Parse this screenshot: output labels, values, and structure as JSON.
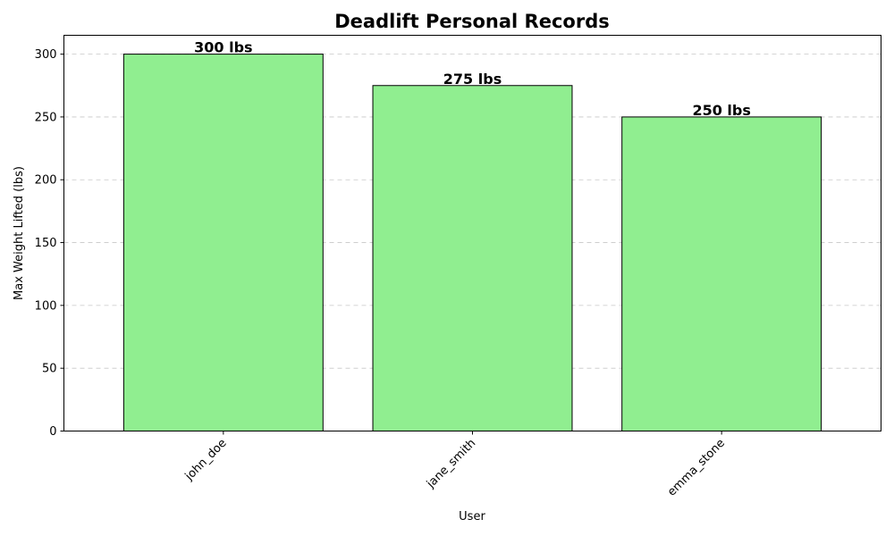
{
  "chart_data": {
    "type": "bar",
    "title": "Deadlift Personal Records",
    "xlabel": "User",
    "ylabel": "Max Weight Lifted (lbs)",
    "categories": [
      "john_doe",
      "jane_smith",
      "emma_stone"
    ],
    "values": [
      300,
      275,
      250
    ],
    "data_labels": [
      "300 lbs",
      "275 lbs",
      "250 lbs"
    ],
    "ylim": [
      0,
      315
    ],
    "yticks": [
      0,
      50,
      100,
      150,
      200,
      250,
      300
    ],
    "grid": "y-dashed",
    "bar_color": "#90ee90",
    "edge_color": "#000000"
  }
}
